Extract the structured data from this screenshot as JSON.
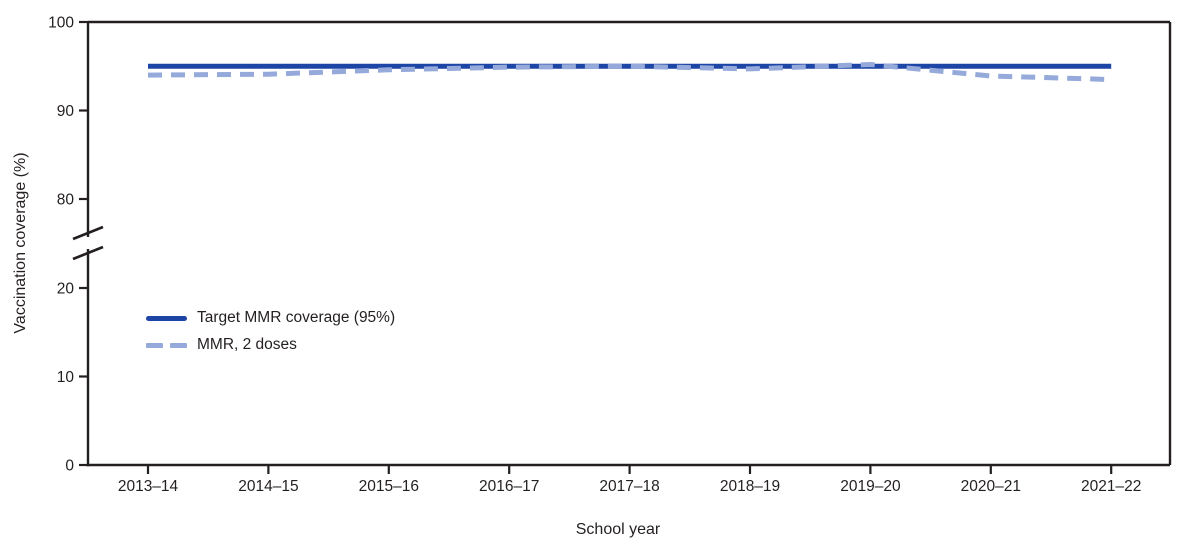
{
  "chart_data": {
    "type": "line",
    "title": "",
    "xlabel": "School year",
    "ylabel": "Vaccination coverage (%)",
    "categories": [
      "2013–14",
      "2014–15",
      "2015–16",
      "2016–17",
      "2017–18",
      "2018–19",
      "2019–20",
      "2020–21",
      "2021–22"
    ],
    "series": [
      {
        "name": "Target MMR coverage (95%)",
        "style": "solid",
        "color": "#1c45a6",
        "values": [
          95,
          95,
          95,
          95,
          95,
          95,
          95,
          95,
          95
        ]
      },
      {
        "name": "MMR, 2 doses",
        "style": "dashed",
        "color": "#95aada",
        "values": [
          94.0,
          94.1,
          94.6,
          94.9,
          95.0,
          94.7,
          95.2,
          93.9,
          93.5
        ]
      }
    ],
    "y_ticks_lower": [
      0,
      10,
      20
    ],
    "y_ticks_upper": [
      80,
      90,
      100
    ],
    "axis_break": {
      "between": [
        20,
        80
      ]
    },
    "ylim": [
      0,
      100
    ],
    "grid": "off",
    "legend_position": "inside-upper-left",
    "axis_color": "#231f20",
    "text_color": "#231f20"
  }
}
